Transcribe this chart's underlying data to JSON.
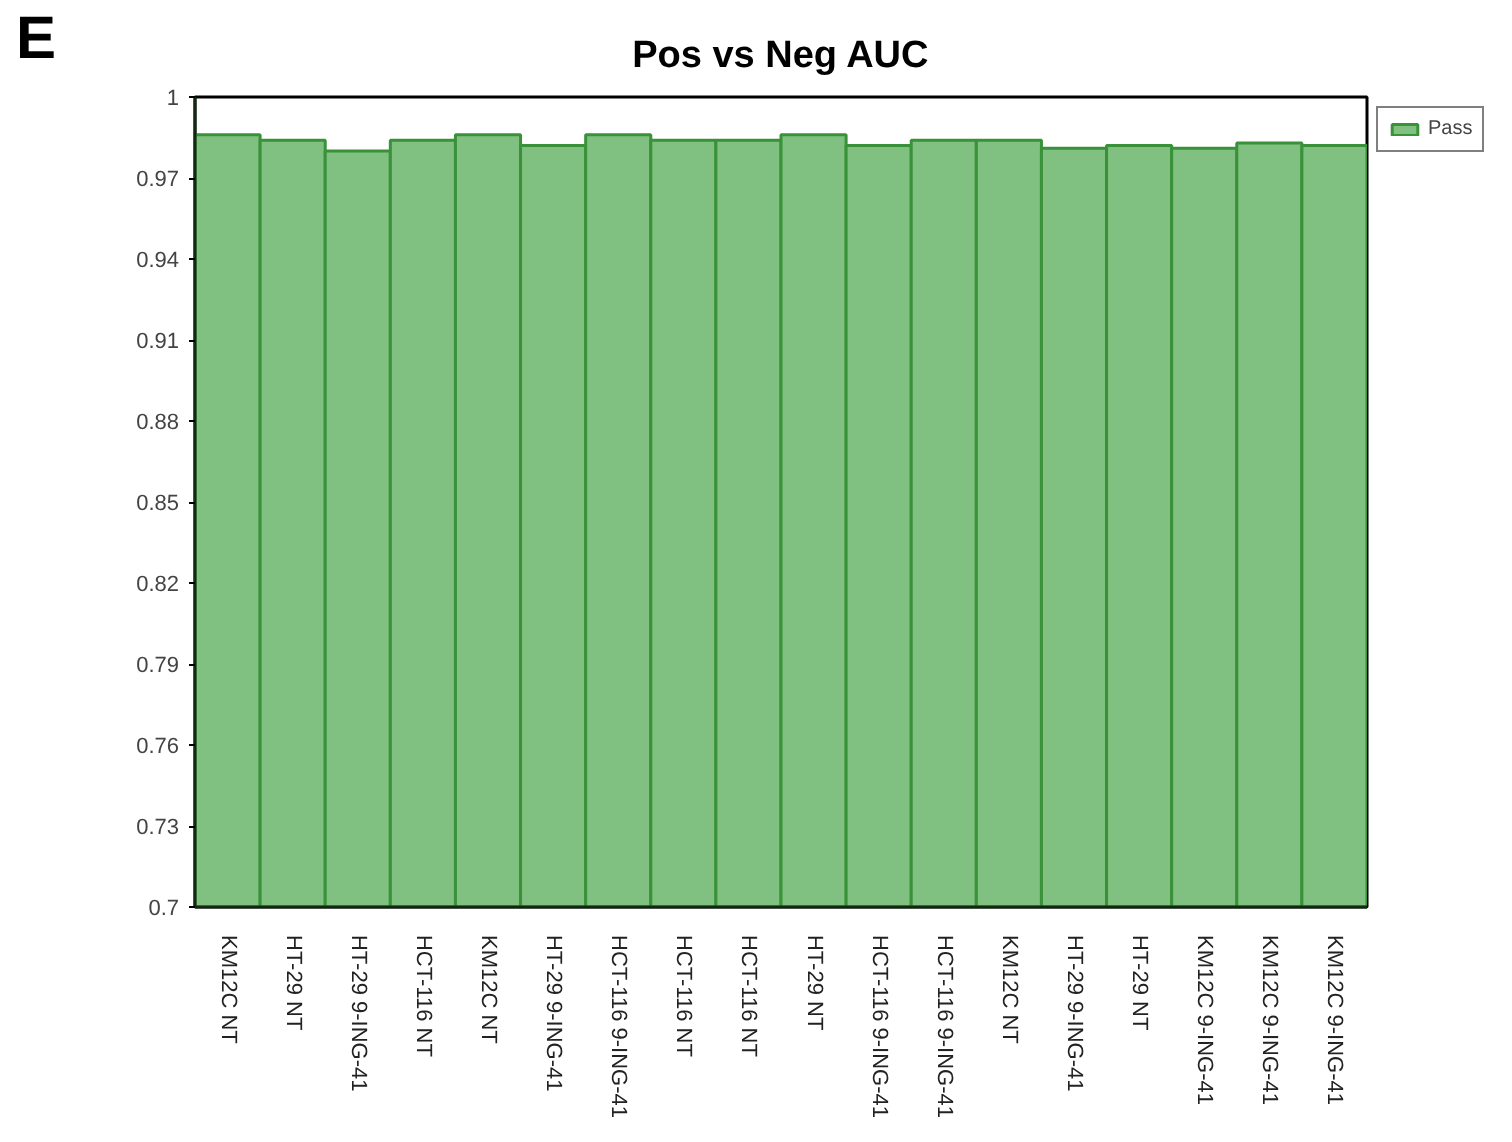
{
  "chart_data": {
    "type": "bar",
    "title": "Pos vs Neg AUC",
    "annotations": [
      "E"
    ],
    "categories": [
      "KM12C NT",
      "HT-29 NT",
      "HT-29 9-ING-41",
      "HCT-116 NT",
      "KM12C NT",
      "HT-29 9-ING-41",
      "HCT-116 9-ING-41",
      "HCT-116 NT",
      "HCT-116 NT",
      "HT-29 NT",
      "HCT-116 9-ING-41",
      "HCT-116 9-ING-41",
      "KM12C NT",
      "HT-29 9-ING-41",
      "HT-29 NT",
      "KM12C 9-ING-41",
      "KM12C 9-ING-41",
      "KM12C 9-ING-41"
    ],
    "series": [
      {
        "name": "Pass",
        "color": "#80c080",
        "values": [
          0.986,
          0.984,
          0.98,
          0.984,
          0.986,
          0.982,
          0.986,
          0.984,
          0.984,
          0.986,
          0.982,
          0.984,
          0.984,
          0.981,
          0.982,
          0.981,
          0.983,
          0.982
        ]
      }
    ],
    "ylim": [
      0.7,
      1
    ],
    "yticks": [
      0.7,
      0.73,
      0.76,
      0.79,
      0.82,
      0.85,
      0.88,
      0.91,
      0.94,
      0.97,
      1
    ],
    "grid": false,
    "legend": "top right"
  }
}
